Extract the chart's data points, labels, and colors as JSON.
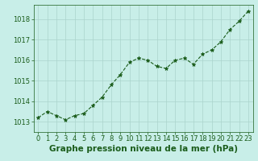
{
  "x": [
    0,
    1,
    2,
    3,
    4,
    5,
    6,
    7,
    8,
    9,
    10,
    11,
    12,
    13,
    14,
    15,
    16,
    17,
    18,
    19,
    20,
    21,
    22,
    23
  ],
  "y": [
    1013.2,
    1013.5,
    1013.3,
    1013.1,
    1013.3,
    1013.4,
    1013.8,
    1014.2,
    1014.8,
    1015.3,
    1015.9,
    1016.1,
    1016.0,
    1015.7,
    1015.6,
    1016.0,
    1016.1,
    1015.8,
    1016.3,
    1016.5,
    1016.9,
    1017.5,
    1017.9,
    1018.4
  ],
  "line_color": "#1a5c1a",
  "marker": "*",
  "bg_color": "#c8eee8",
  "grid_color": "#aad4cc",
  "title": "Graphe pression niveau de la mer (hPa)",
  "xlim": [
    -0.5,
    23.5
  ],
  "ylim": [
    1012.5,
    1018.7
  ],
  "yticks": [
    1013,
    1014,
    1015,
    1016,
    1017,
    1018
  ],
  "xticks": [
    0,
    1,
    2,
    3,
    4,
    5,
    6,
    7,
    8,
    9,
    10,
    11,
    12,
    13,
    14,
    15,
    16,
    17,
    18,
    19,
    20,
    21,
    22,
    23
  ],
  "title_fontsize": 7.5,
  "tick_fontsize": 6,
  "title_color": "#1a5c1a",
  "tick_color": "#1a5c1a",
  "line_width": 0.8,
  "marker_size": 3.5
}
